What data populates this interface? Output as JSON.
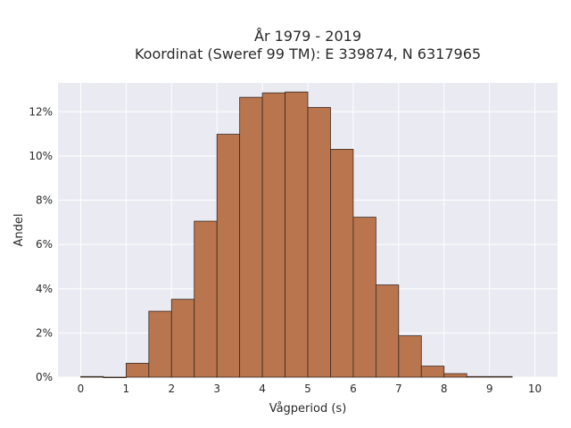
{
  "chart_data": {
    "type": "bar",
    "title_line1": "År 1979 - 2019",
    "title_line2": "Koordinat (Sweref 99 TM): E 339874, N 6317965",
    "xlabel": "Vågperiod (s)",
    "ylabel": "Andel",
    "xlim": [
      -0.5,
      10.5
    ],
    "ylim": [
      0,
      0.133
    ],
    "x_ticks": [
      0,
      1,
      2,
      3,
      4,
      5,
      6,
      7,
      8,
      9,
      10
    ],
    "x_tick_labels": [
      "0",
      "1",
      "2",
      "3",
      "4",
      "5",
      "6",
      "7",
      "8",
      "9",
      "10"
    ],
    "y_ticks": [
      0,
      0.02,
      0.04,
      0.06,
      0.08,
      0.1,
      0.12
    ],
    "y_tick_labels": [
      "0%",
      "2%",
      "4%",
      "6%",
      "8%",
      "10%",
      "12%"
    ],
    "bin_width": 0.5,
    "bin_starts": [
      0,
      0.5,
      1,
      1.5,
      2,
      2.5,
      3,
      3.5,
      4,
      4.5,
      5,
      5.5,
      6,
      6.5,
      7,
      7.5,
      8,
      8.5,
      9
    ],
    "values": [
      0.0003,
      0.0,
      0.0063,
      0.0298,
      0.0352,
      0.0705,
      0.1098,
      0.1265,
      0.1285,
      0.1289,
      0.1219,
      0.103,
      0.0723,
      0.0417,
      0.0187,
      0.005,
      0.0016,
      0.0003,
      0.0003
    ],
    "grid": true,
    "colors": {
      "bar_fill": "#b9754e",
      "bar_edge": "#3a2a20",
      "plot_background": "#eaeaf2",
      "grid": "#ffffff"
    }
  }
}
